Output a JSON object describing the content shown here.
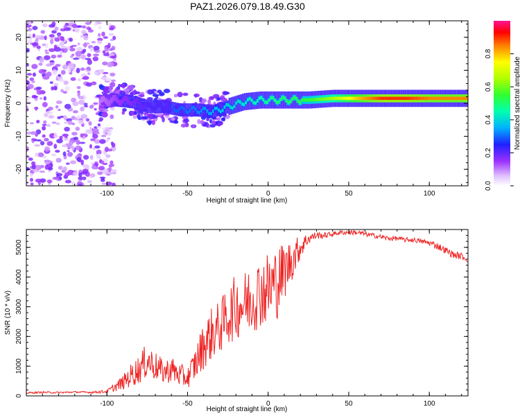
{
  "title": "PAZ1.2026.079.18.49.G30",
  "chart_data": [
    {
      "type": "heatmap",
      "xlabel": "Height of straight line (km)",
      "ylabel": "Frequency (Hz)",
      "xlim": [
        -150,
        124
      ],
      "ylim": [
        -25,
        25
      ],
      "xticks": [
        -100,
        -50,
        0,
        50,
        100
      ],
      "xtick_labels": [
        "-100",
        "-50",
        "0",
        "50",
        "100"
      ],
      "yticks": [
        -20,
        -10,
        0,
        10,
        20
      ],
      "ytick_labels": [
        "-20",
        "-10",
        "0",
        "10",
        "20"
      ],
      "colorbar": {
        "label": "Normalized spectral amplitude",
        "range": [
          0,
          1
        ],
        "ticks": [
          0,
          0.2,
          0.4,
          0.6,
          0.8
        ],
        "tick_labels": [
          "0.0",
          "0.2",
          "0.4",
          "0.6",
          "0.8"
        ]
      },
      "ridge": [
        {
          "x": -105,
          "freq": 0.5,
          "amp": 0.15
        },
        {
          "x": -95,
          "freq": 1.0,
          "amp": 0.2
        },
        {
          "x": -85,
          "freq": 0.5,
          "amp": 0.25
        },
        {
          "x": -75,
          "freq": -1.0,
          "amp": 0.3
        },
        {
          "x": -65,
          "freq": -1.0,
          "amp": 0.3
        },
        {
          "x": -55,
          "freq": -2.0,
          "amp": 0.3
        },
        {
          "x": -45,
          "freq": -2.0,
          "amp": 0.32
        },
        {
          "x": -35,
          "freq": -2.5,
          "amp": 0.35
        },
        {
          "x": -25,
          "freq": -1.0,
          "amp": 0.4
        },
        {
          "x": -15,
          "freq": 0.5,
          "amp": 0.42
        },
        {
          "x": -5,
          "freq": 1.0,
          "amp": 0.45
        },
        {
          "x": 5,
          "freq": 1.0,
          "amp": 0.5
        },
        {
          "x": 15,
          "freq": 1.0,
          "amp": 0.52
        },
        {
          "x": 25,
          "freq": 1.0,
          "amp": 0.55
        },
        {
          "x": 40,
          "freq": 1.5,
          "amp": 0.65
        },
        {
          "x": 55,
          "freq": 1.5,
          "amp": 0.8
        },
        {
          "x": 70,
          "freq": 1.5,
          "amp": 0.9
        },
        {
          "x": 85,
          "freq": 1.5,
          "amp": 0.9
        },
        {
          "x": 100,
          "freq": 1.5,
          "amp": 0.85
        },
        {
          "x": 110,
          "freq": 1.5,
          "amp": 0.85
        },
        {
          "x": 124,
          "freq": 1.5,
          "amp": 0.85
        }
      ]
    },
    {
      "type": "line",
      "xlabel": "Height of straight line (km)",
      "ylabel": "SNR (10 * v/v)",
      "xlim": [
        -150,
        124
      ],
      "ylim": [
        0,
        5600
      ],
      "xticks": [
        -100,
        -50,
        0,
        50,
        100
      ],
      "xtick_labels": [
        "-100",
        "-50",
        "0",
        "50",
        "100"
      ],
      "yticks": [
        0,
        1000,
        2000,
        3000,
        4000,
        5000
      ],
      "ytick_labels": [
        "0",
        "1000",
        "2000",
        "3000",
        "4000",
        "5000"
      ],
      "series": [
        {
          "name": "SNR",
          "color": "#ee2222",
          "x": [
            -150,
            -140,
            -130,
            -120,
            -110,
            -100,
            -95,
            -90,
            -85,
            -80,
            -75,
            -70,
            -65,
            -60,
            -55,
            -50,
            -45,
            -40,
            -35,
            -30,
            -25,
            -20,
            -15,
            -10,
            -5,
            0,
            5,
            10,
            15,
            20,
            25,
            30,
            35,
            40,
            45,
            50,
            55,
            60,
            65,
            70,
            75,
            80,
            85,
            90,
            95,
            100,
            105,
            110,
            115,
            120,
            124
          ],
          "values": [
            100,
            120,
            110,
            130,
            120,
            150,
            300,
            450,
            700,
            900,
            1200,
            1000,
            800,
            900,
            700,
            600,
            1100,
            1700,
            2100,
            2300,
            2700,
            3000,
            3100,
            3300,
            3500,
            3600,
            3800,
            4200,
            4600,
            5000,
            5300,
            5400,
            5400,
            5450,
            5500,
            5500,
            5500,
            5450,
            5400,
            5350,
            5300,
            5300,
            5250,
            5250,
            5200,
            5150,
            5050,
            4900,
            4750,
            4700,
            4600
          ],
          "spread": [
            30,
            30,
            30,
            30,
            30,
            60,
            150,
            250,
            400,
            500,
            600,
            500,
            400,
            450,
            400,
            350,
            600,
            800,
            900,
            900,
            1000,
            1100,
            1100,
            1200,
            1200,
            1300,
            1300,
            1000,
            700,
            400,
            200,
            120,
            100,
            80,
            80,
            80,
            80,
            80,
            80,
            80,
            80,
            80,
            80,
            80,
            80,
            100,
            120,
            120,
            120,
            120,
            120
          ]
        }
      ]
    }
  ]
}
